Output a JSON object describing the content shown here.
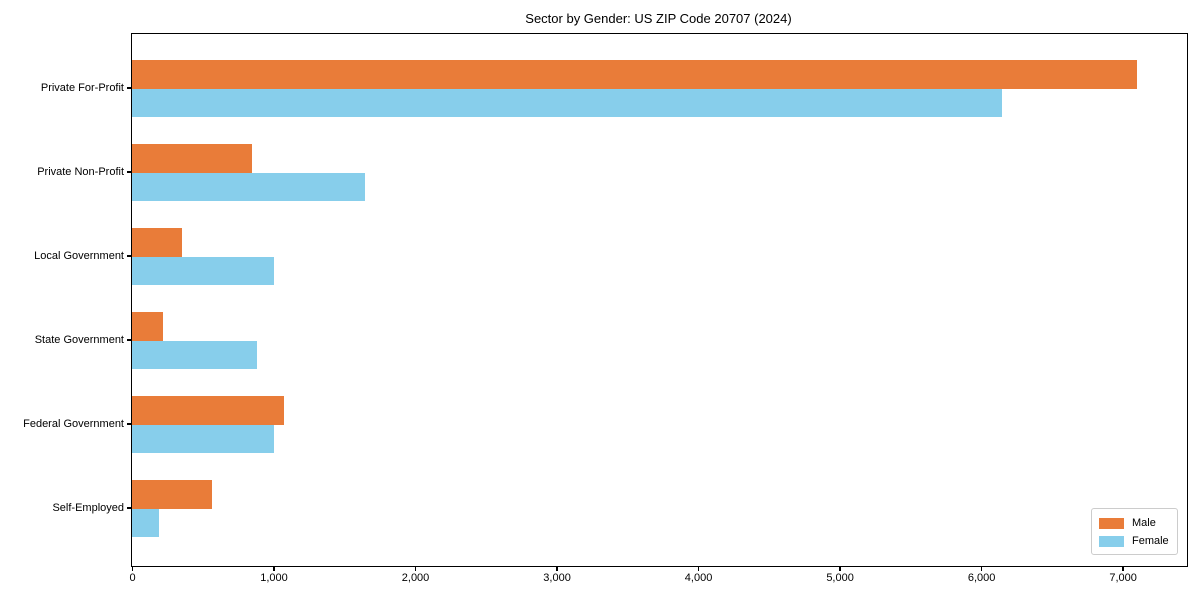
{
  "chart_data": {
    "type": "bar",
    "orientation": "horizontal",
    "title": "Sector by Gender: US ZIP Code 20707 (2024)",
    "xlabel": "",
    "ylabel": "",
    "categories": [
      "Private For-Profit",
      "Private Non-Profit",
      "Local Government",
      "State Government",
      "Federal Government",
      "Self-Employed"
    ],
    "series": [
      {
        "name": "Male",
        "color": "#E97C39",
        "values": [
          7100,
          845,
          350,
          220,
          1075,
          565
        ]
      },
      {
        "name": "Female",
        "color": "#87CEEB",
        "values": [
          6150,
          1645,
          1000,
          880,
          1000,
          190
        ]
      }
    ],
    "xlim": [
      0,
      7455
    ],
    "xticks": [
      0,
      1000,
      2000,
      3000,
      4000,
      5000,
      6000,
      7000
    ],
    "xtick_labels": [
      "0",
      "1,000",
      "2,000",
      "3,000",
      "4,000",
      "5,000",
      "6,000",
      "7,000"
    ],
    "grid": false,
    "legend": {
      "position": "lower right",
      "entries": [
        "Male",
        "Female"
      ]
    }
  }
}
